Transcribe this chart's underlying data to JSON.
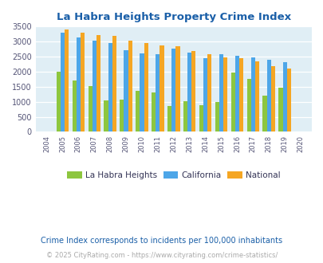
{
  "title": "La Habra Heights Property Crime Index",
  "years": [
    "2004",
    "2005",
    "2006",
    "2007",
    "2008",
    "2009",
    "2010",
    "2011",
    "2012",
    "2013",
    "2014",
    "2015",
    "2016",
    "2017",
    "2018",
    "2019",
    "2020"
  ],
  "la_habra": [
    0,
    2000,
    1700,
    1520,
    1050,
    1070,
    1360,
    1320,
    870,
    1020,
    900,
    1000,
    1980,
    1750,
    1210,
    1460,
    0
  ],
  "california": [
    0,
    3310,
    3140,
    3020,
    2940,
    2720,
    2620,
    2580,
    2760,
    2640,
    2440,
    2590,
    2540,
    2480,
    2390,
    2330,
    0
  ],
  "national": [
    0,
    3400,
    3310,
    3230,
    3190,
    3020,
    2940,
    2880,
    2840,
    2680,
    2570,
    2470,
    2440,
    2350,
    2190,
    2100,
    0
  ],
  "colors": {
    "la_habra": "#8dc63f",
    "california": "#4da6e8",
    "national": "#f5a623"
  },
  "ylim": [
    0,
    3500
  ],
  "ylabel_step": 500,
  "legend_labels": [
    "La Habra Heights",
    "California",
    "National"
  ],
  "footnote1": "Crime Index corresponds to incidents per 100,000 inhabitants",
  "footnote2": "© 2025 CityRating.com - https://www.cityrating.com/crime-statistics/",
  "title_color": "#1a5fa8",
  "footnote1_color": "#1a5fa8",
  "footnote2_color": "#aaaaaa",
  "fig_bg_color": "#ffffff",
  "plot_area_bg": "#e0eef5"
}
